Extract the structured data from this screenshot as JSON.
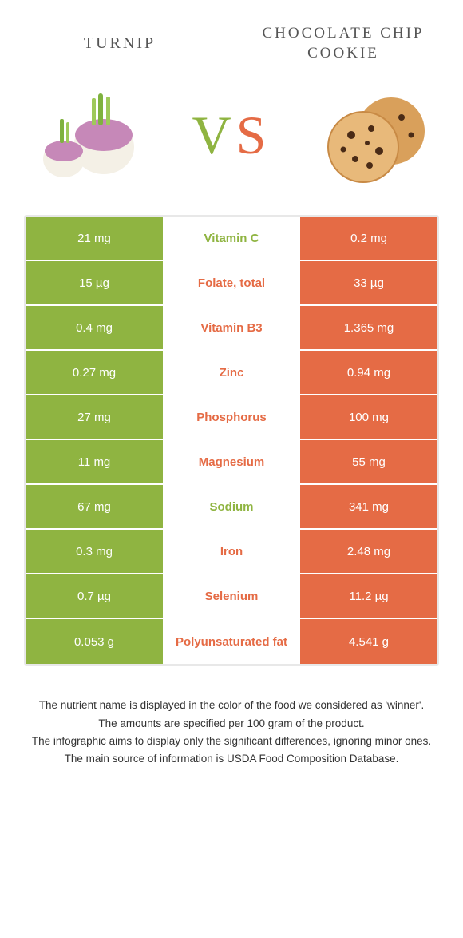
{
  "header": {
    "left_title": "Turnip",
    "right_title": "Chocolate Chip Cookie",
    "vs_v": "V",
    "vs_s": "S"
  },
  "colors": {
    "left": "#8fb441",
    "right": "#e56b45",
    "border": "#e8e8e8",
    "bg": "#ffffff"
  },
  "rows": [
    {
      "left": "21 mg",
      "label": "Vitamin C",
      "right": "0.2 mg",
      "winner": "left"
    },
    {
      "left": "15 µg",
      "label": "Folate, total",
      "right": "33 µg",
      "winner": "right"
    },
    {
      "left": "0.4 mg",
      "label": "Vitamin B3",
      "right": "1.365 mg",
      "winner": "right"
    },
    {
      "left": "0.27 mg",
      "label": "Zinc",
      "right": "0.94 mg",
      "winner": "right"
    },
    {
      "left": "27 mg",
      "label": "Phosphorus",
      "right": "100 mg",
      "winner": "right"
    },
    {
      "left": "11 mg",
      "label": "Magnesium",
      "right": "55 mg",
      "winner": "right"
    },
    {
      "left": "67 mg",
      "label": "Sodium",
      "right": "341 mg",
      "winner": "left"
    },
    {
      "left": "0.3 mg",
      "label": "Iron",
      "right": "2.48 mg",
      "winner": "right"
    },
    {
      "left": "0.7 µg",
      "label": "Selenium",
      "right": "11.2 µg",
      "winner": "right"
    },
    {
      "left": "0.053 g",
      "label": "Polyunsaturated fat",
      "right": "4.541 g",
      "winner": "right"
    }
  ],
  "footer": {
    "l1": "The nutrient name is displayed in the color of the food we considered as 'winner'.",
    "l2": "The amounts are specified per 100 gram of the product.",
    "l3": "The infographic aims to display only the significant differences, ignoring minor ones.",
    "l4": "The main source of information is USDA Food Composition Database."
  }
}
